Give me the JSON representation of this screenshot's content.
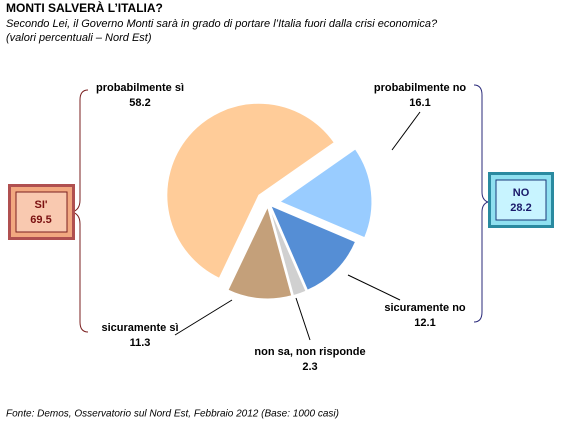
{
  "chart_data": {
    "type": "pie",
    "title": "MONTI SALVERÀ L’ITALIA?",
    "subtitle": [
      "Secondo Lei, il Governo Monti sarà in grado di portare l’Italia fuori dalla crisi economica?",
      "(valori percentuali – Nord Est)"
    ],
    "categories": [
      "probabilmente sì",
      "probabilmente no",
      "sicuramente no",
      "non sa, non risponde",
      "sicuramente sì"
    ],
    "values": [
      58.2,
      16.1,
      12.1,
      2.3,
      11.3
    ],
    "colors": [
      "#ffcc99",
      "#99ccff",
      "#558ed5",
      "#d0d0d0",
      "#c4a07a"
    ],
    "groups": [
      {
        "label": "SI'",
        "value": 69.5
      },
      {
        "label": "NO",
        "value": 28.2
      }
    ],
    "source": "Fonte: Demos, Osservatorio sul Nord Est, Febbraio 2012 (Base: 1000 casi)"
  }
}
